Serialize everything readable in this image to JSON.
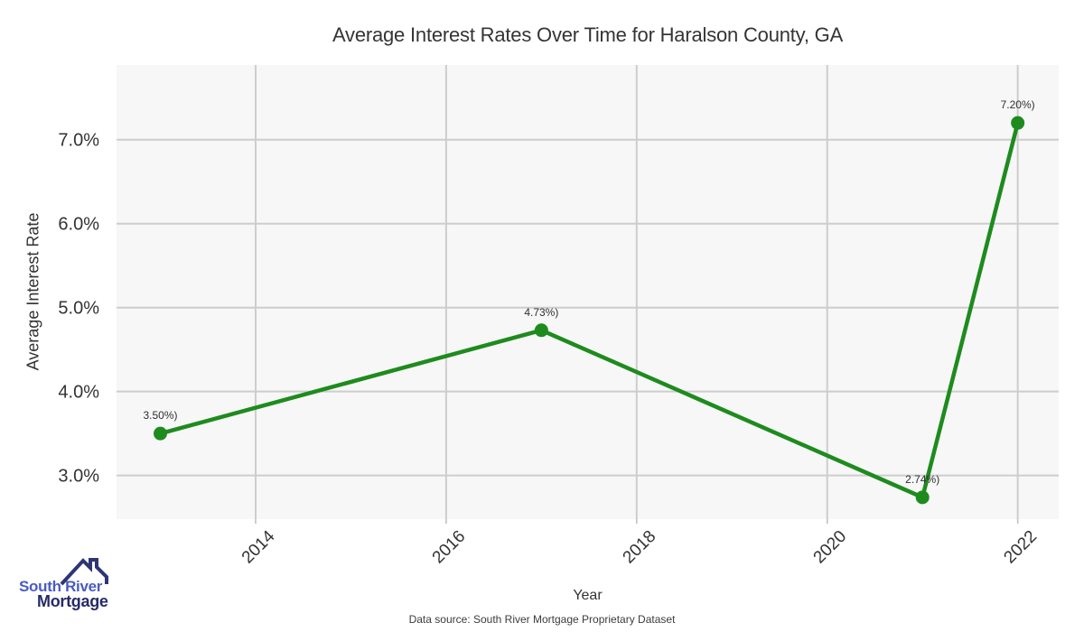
{
  "chart_data": {
    "type": "line",
    "title": "Average Interest Rates Over Time for Haralson County, GA",
    "xlabel": "Year",
    "ylabel": "Average Interest Rate",
    "x": [
      2013,
      2017,
      2021,
      2022
    ],
    "y": [
      3.5,
      4.73,
      2.74,
      7.2
    ],
    "point_labels": [
      "3.50%)",
      "4.73%)",
      "2.74%)",
      "7.20%)"
    ],
    "xticks": {
      "values": [
        2014,
        2016,
        2018,
        2020,
        2022
      ],
      "labels": [
        "2014",
        "2016",
        "2018",
        "2020",
        "2022"
      ]
    },
    "yticks": {
      "values": [
        3,
        4,
        5,
        6,
        7
      ],
      "labels": [
        "3.0%",
        "4.0%",
        "5.0%",
        "6.0%",
        "7.0%"
      ]
    },
    "xlim": [
      2012.54,
      2022.43
    ],
    "ylim": [
      2.48,
      7.89
    ],
    "grid": true,
    "legend": "none",
    "line_color": "#1e8b1e",
    "panel_background": "#f7f7f7",
    "gridline_color": "#cdcdcd",
    "tick_label_color": "#333333",
    "annotation_color": "#2f2f2f"
  },
  "footer": {
    "source_note": "Data source: South River Mortgage Proprietary Dataset"
  },
  "logo": {
    "line1": "South River",
    "line2": "Mortgage",
    "accent_color": "#4a5cc0",
    "dark_color": "#262b68",
    "roof_color": "#2e3576"
  }
}
